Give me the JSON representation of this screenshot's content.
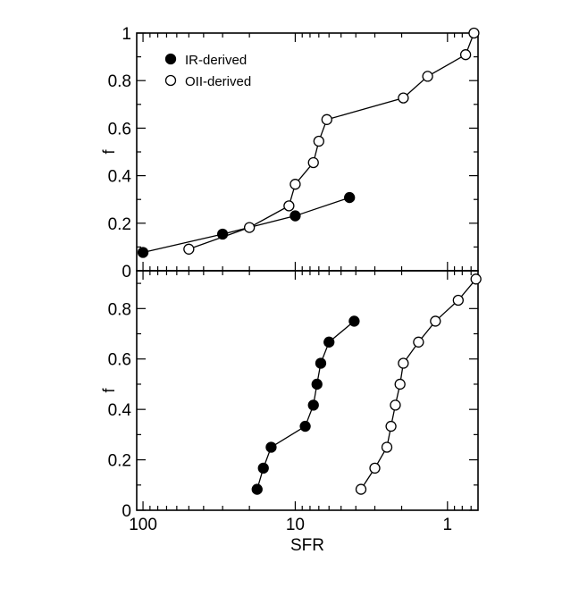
{
  "chart_data": [
    {
      "type": "scatter",
      "panel": "top",
      "xlabel": "",
      "ylabel": "f",
      "xscale": "log-reversed",
      "xlim": [
        110,
        0.63
      ],
      "ylim": [
        0,
        1
      ],
      "yticks": [
        0,
        0.2,
        0.4,
        0.6,
        0.8,
        1
      ],
      "ytick_labels": [
        "0",
        "0.2",
        "0.4",
        "0.6",
        "0.8",
        "1"
      ],
      "legend": {
        "placement": "top-left",
        "entries": [
          {
            "label": "IR-derived",
            "marker": "filled"
          },
          {
            "label": "OII-derived",
            "marker": "open"
          }
        ]
      },
      "series": [
        {
          "name": "IR-derived",
          "marker": "filled",
          "x": [
            100,
            30,
            10,
            4.4
          ],
          "y": [
            0.077,
            0.154,
            0.231,
            0.308
          ]
        },
        {
          "name": "OII-derived",
          "marker": "open",
          "x": [
            50,
            20,
            11,
            10,
            7.6,
            7,
            6.2,
            1.95,
            1.35,
            0.76,
            0.67
          ],
          "y": [
            0.091,
            0.182,
            0.273,
            0.364,
            0.455,
            0.545,
            0.636,
            0.727,
            0.818,
            0.909,
            1.0
          ]
        }
      ]
    },
    {
      "type": "scatter",
      "panel": "bottom",
      "xlabel": "SFR",
      "ylabel": "f",
      "xscale": "log-reversed",
      "xlim": [
        110,
        0.63
      ],
      "ylim": [
        0,
        0.95
      ],
      "yticks": [
        0,
        0.2,
        0.4,
        0.6,
        0.8
      ],
      "ytick_labels": [
        "0",
        "0.2",
        "0.4",
        "0.6",
        "0.8"
      ],
      "xticks": [
        100,
        10,
        1
      ],
      "xtick_labels": [
        "100",
        "10",
        "1"
      ],
      "series": [
        {
          "name": "IR-derived",
          "marker": "filled",
          "x": [
            17.8,
            16.2,
            14.4,
            8.6,
            7.6,
            7.2,
            6.8,
            6.0,
            4.1
          ],
          "y": [
            0.083,
            0.167,
            0.25,
            0.333,
            0.417,
            0.5,
            0.583,
            0.667,
            0.75
          ]
        },
        {
          "name": "OII-derived",
          "marker": "open",
          "x": [
            3.7,
            3.0,
            2.5,
            2.35,
            2.2,
            2.05,
            1.95,
            1.55,
            1.2,
            0.85,
            0.65
          ],
          "y": [
            0.083,
            0.167,
            0.25,
            0.333,
            0.417,
            0.5,
            0.583,
            0.667,
            0.75,
            0.833,
            0.917
          ]
        }
      ]
    }
  ]
}
